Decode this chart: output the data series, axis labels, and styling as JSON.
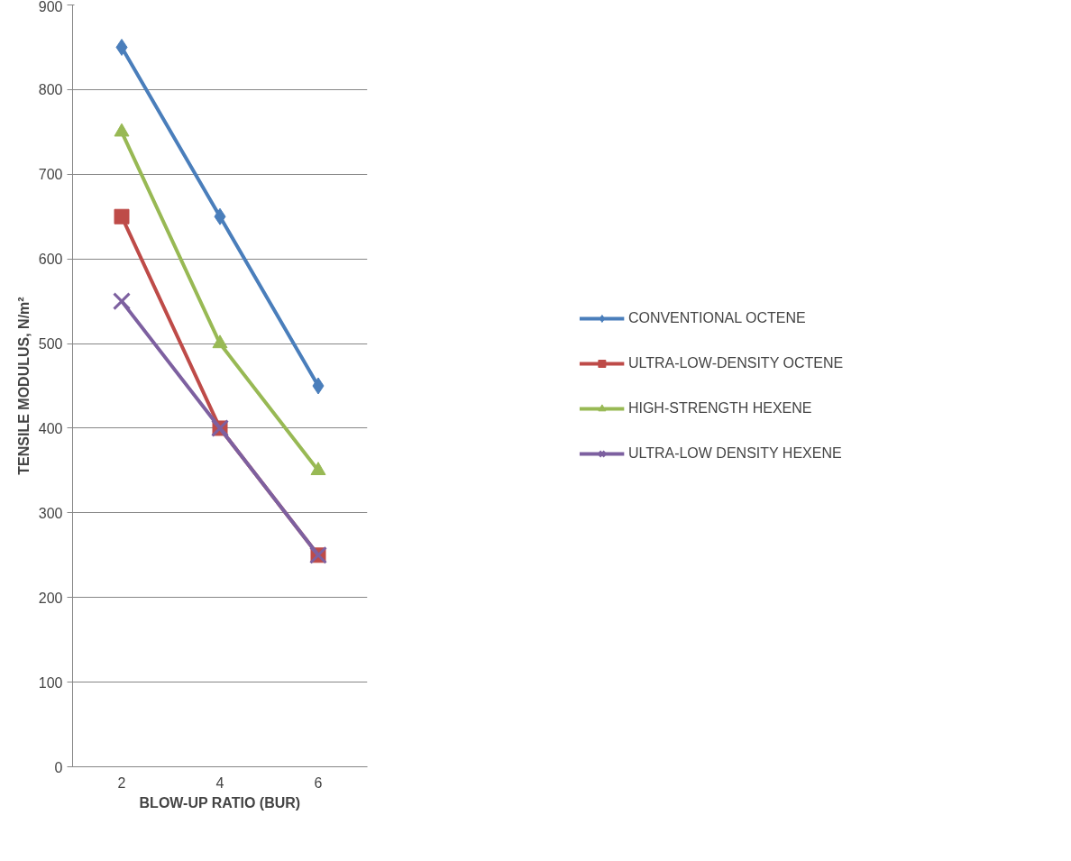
{
  "chart_data": {
    "type": "line",
    "xlabel": "BLOW-UP RATIO (BUR)",
    "ylabel": "TENSILE MODULUS, N/m²",
    "categories": [
      "2",
      "4",
      "6"
    ],
    "ylim": [
      0,
      900
    ],
    "yticks": [
      0,
      100,
      200,
      300,
      400,
      500,
      600,
      700,
      800,
      900
    ],
    "grid": "y",
    "legend": "right",
    "line_style": "solid",
    "series": [
      {
        "name": "CONVENTIONAL OCTENE",
        "color": "#4a7ebb",
        "marker": "diamond",
        "values": [
          850,
          650,
          450
        ]
      },
      {
        "name": "ULTRA-LOW-DENSITY OCTENE",
        "color": "#be4b48",
        "marker": "square",
        "values": [
          650,
          400,
          250
        ]
      },
      {
        "name": "HIGH-STRENGTH HEXENE",
        "color": "#98b954",
        "marker": "triangle",
        "values": [
          750,
          500,
          350
        ]
      },
      {
        "name": "ULTRA-LOW DENSITY HEXENE",
        "color": "#7d60a0",
        "marker": "x",
        "values": [
          550,
          400,
          250
        ]
      }
    ]
  }
}
